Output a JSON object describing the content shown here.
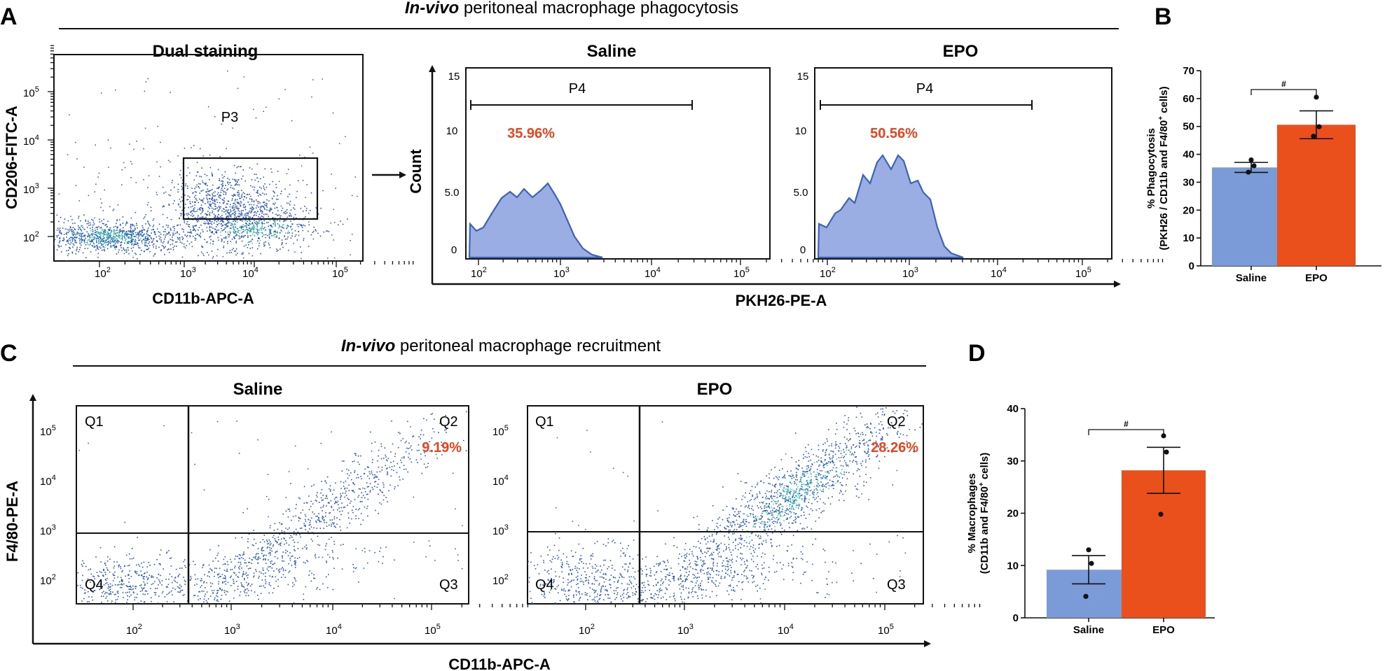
{
  "colors": {
    "saline": "#7b9bd8",
    "epo": "#e9501c",
    "pct_text": "#e8431c",
    "dots": "#2a55b8",
    "hist_fill": "#9aaee3",
    "hist_line": "#3d62b8"
  },
  "panel_a": {
    "letter": "A",
    "title_italic": "In-vivo",
    "title_rest": " peritoneal macrophage phagocytosis",
    "dual": {
      "title": "Dual staining",
      "xlabel": "CD11b-APC-A",
      "ylabel": "CD206-FITC-A",
      "gate": "P3",
      "xticks": [
        "10",
        "10",
        "10",
        "10"
      ],
      "xexp": [
        "2",
        "3",
        "4",
        "5"
      ],
      "yticks": [
        "10",
        "10",
        "10",
        "10"
      ],
      "yexp": [
        "2",
        "3",
        "4",
        "5"
      ]
    },
    "histograms": {
      "xlabel": "PKH26-PE-A",
      "ylabel": "Count",
      "yticks": [
        "0",
        "5.0",
        "10",
        "15"
      ],
      "xticks": [
        "10",
        "10",
        "10",
        "10"
      ],
      "xexp": [
        "2",
        "3",
        "4",
        "5"
      ],
      "gate": "P4",
      "saline": {
        "title": "Saline",
        "percent": "35.96%"
      },
      "epo": {
        "title": "EPO",
        "percent": "50.56%"
      }
    }
  },
  "panel_b": {
    "letter": "B"
  },
  "panel_c": {
    "letter": "C",
    "title_italic": "In-vivo",
    "title_rest": " peritoneal macrophage recruitment",
    "xlabel": "CD11b-APC-A",
    "ylabel": "F4/80-PE-A",
    "xticks": [
      "10",
      "10",
      "10",
      "10"
    ],
    "xexp": [
      "2",
      "3",
      "4",
      "5"
    ],
    "yticks": [
      "10",
      "10",
      "10",
      "10"
    ],
    "yexp": [
      "2",
      "3",
      "4",
      "5"
    ],
    "quadrants": [
      "Q1",
      "Q2",
      "Q3",
      "Q4"
    ],
    "saline": {
      "title": "Saline",
      "q2_percent": "9.19%"
    },
    "epo": {
      "title": "EPO",
      "q2_percent": "28.26%"
    }
  },
  "panel_d": {
    "letter": "D"
  },
  "chart_data": [
    {
      "type": "bar",
      "panel": "B",
      "categories": [
        "Saline",
        "EPO"
      ],
      "values": [
        35.3,
        50.6
      ],
      "errors": [
        1.8,
        5.0
      ],
      "points": [
        [
          33.6,
          35.9,
          38.0
        ],
        [
          46.5,
          49.9,
          60.5
        ]
      ],
      "ylabel_line1": "% Phagocytosis",
      "ylabel_line2": "(PKH26 / CD11b and F4/80",
      "ylabel_sup": "+",
      "ylabel_end": " cells)",
      "ylim": [
        0,
        70
      ],
      "yticks": [
        "0",
        "10",
        "20",
        "30",
        "40",
        "50",
        "60",
        "70"
      ],
      "significance": "#"
    },
    {
      "type": "bar",
      "panel": "D",
      "categories": [
        "Saline",
        "EPO"
      ],
      "values": [
        9.2,
        28.2
      ],
      "errors": [
        2.7,
        4.4
      ],
      "points": [
        [
          4.1,
          10.4,
          13.0
        ],
        [
          19.8,
          31.7,
          34.8
        ]
      ],
      "ylabel_line1": "% Macrophages",
      "ylabel_line2": "(CD11b and F4/80",
      "ylabel_sup": "+",
      "ylabel_end": " cells)",
      "ylim": [
        0,
        40
      ],
      "yticks": [
        "0",
        "10",
        "20",
        "30",
        "40"
      ],
      "significance": "#"
    }
  ]
}
